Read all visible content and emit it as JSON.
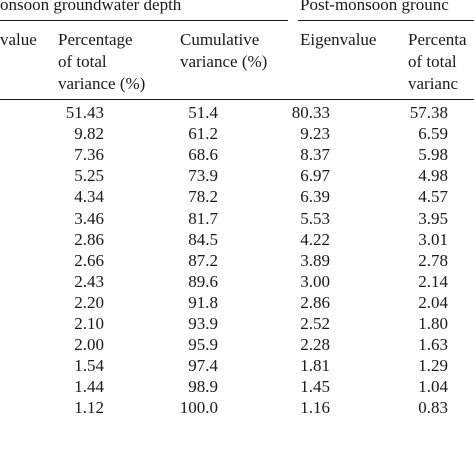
{
  "groups": {
    "pre": "onsoon groundwater depth",
    "post": "Post-monsoon grounc"
  },
  "headers": {
    "pre_eigen": "value",
    "pre_pct": [
      "Percentage",
      "of total",
      "variance (%)"
    ],
    "pre_cum": [
      "Cumulative",
      "variance (%)"
    ],
    "post_eigen": "Eigenvalue",
    "post_pct": [
      "Percenta",
      "of total",
      "varianc"
    ]
  },
  "rows": [
    {
      "pre_pct": "51.43",
      "pre_cum": "51.4",
      "post_eigen": "80.33",
      "post_pct": "57.38"
    },
    {
      "pre_pct": "9.82",
      "pre_cum": "61.2",
      "post_eigen": "9.23",
      "post_pct": "6.59"
    },
    {
      "pre_pct": "7.36",
      "pre_cum": "68.6",
      "post_eigen": "8.37",
      "post_pct": "5.98"
    },
    {
      "pre_pct": "5.25",
      "pre_cum": "73.9",
      "post_eigen": "6.97",
      "post_pct": "4.98"
    },
    {
      "pre_pct": "4.34",
      "pre_cum": "78.2",
      "post_eigen": "6.39",
      "post_pct": "4.57"
    },
    {
      "pre_pct": "3.46",
      "pre_cum": "81.7",
      "post_eigen": "5.53",
      "post_pct": "3.95"
    },
    {
      "pre_pct": "2.86",
      "pre_cum": "84.5",
      "post_eigen": "4.22",
      "post_pct": "3.01"
    },
    {
      "pre_pct": "2.66",
      "pre_cum": "87.2",
      "post_eigen": "3.89",
      "post_pct": "2.78"
    },
    {
      "pre_pct": "2.43",
      "pre_cum": "89.6",
      "post_eigen": "3.00",
      "post_pct": "2.14"
    },
    {
      "pre_pct": "2.20",
      "pre_cum": "91.8",
      "post_eigen": "2.86",
      "post_pct": "2.04"
    },
    {
      "pre_pct": "2.10",
      "pre_cum": "93.9",
      "post_eigen": "2.52",
      "post_pct": "1.80"
    },
    {
      "pre_pct": "2.00",
      "pre_cum": "95.9",
      "post_eigen": "2.28",
      "post_pct": "1.63"
    },
    {
      "pre_pct": "1.54",
      "pre_cum": "97.4",
      "post_eigen": "1.81",
      "post_pct": "1.29"
    },
    {
      "pre_pct": "1.44",
      "pre_cum": "98.9",
      "post_eigen": "1.45",
      "post_pct": "1.04"
    },
    {
      "pre_pct": "1.12",
      "pre_cum": "100.0",
      "post_eigen": "1.16",
      "post_pct": "0.83"
    }
  ]
}
